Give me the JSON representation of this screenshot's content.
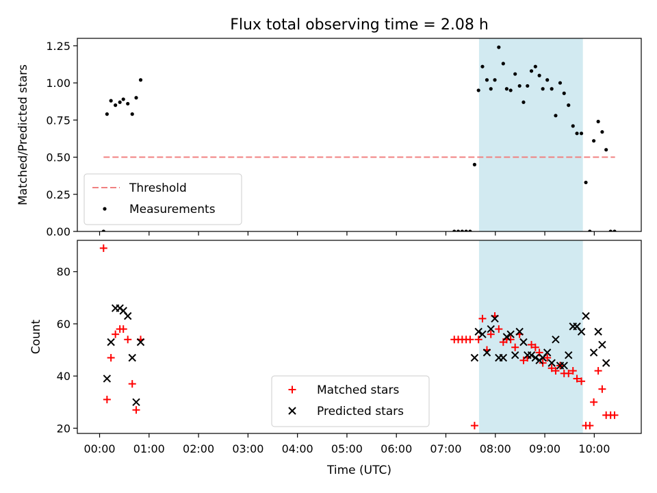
{
  "chart_data": {
    "title": "Flux total observing time = 2.08 h",
    "xlabel": "Time (UTC)",
    "x_unit": "hours",
    "xlim": [
      -0.45,
      10.95
    ],
    "x_ticks": [
      {
        "value": 0,
        "label": "00:00"
      },
      {
        "value": 1,
        "label": "01:00"
      },
      {
        "value": 2,
        "label": "02:00"
      },
      {
        "value": 3,
        "label": "03:00"
      },
      {
        "value": 4,
        "label": "04:00"
      },
      {
        "value": 5,
        "label": "05:00"
      },
      {
        "value": 6,
        "label": "06:00"
      },
      {
        "value": 7,
        "label": "07:00"
      },
      {
        "value": 8,
        "label": "08:00"
      },
      {
        "value": 9,
        "label": "09:00"
      },
      {
        "value": 10,
        "label": "10:00"
      }
    ],
    "shaded_region": {
      "x": [
        7.67,
        9.77
      ],
      "color": "#add8e6"
    },
    "panels": [
      {
        "type": "scatter",
        "ylabel": "Matched/Predicted stars",
        "ylim": [
          0,
          1.3
        ],
        "y_ticks": [
          {
            "value": 0,
            "label": "0.00"
          },
          {
            "value": 0.25,
            "label": "0.25"
          },
          {
            "value": 0.5,
            "label": "0.50"
          },
          {
            "value": 0.75,
            "label": "0.75"
          },
          {
            "value": 1.0,
            "label": "1.00"
          },
          {
            "value": 1.25,
            "label": "1.25"
          }
        ],
        "legend_position": "lower-left",
        "lines": [
          {
            "name": "Threshold",
            "color": "#f08080",
            "dash": true,
            "x": [
              0.08,
              10.42
            ],
            "y": [
              0.5,
              0.5
            ]
          }
        ],
        "series": [
          {
            "name": "Measurements",
            "marker": "dot",
            "color": "#000000",
            "points": [
              [
                0.08,
                0.0
              ],
              [
                0.15,
                0.79
              ],
              [
                0.23,
                0.88
              ],
              [
                0.32,
                0.85
              ],
              [
                0.41,
                0.87
              ],
              [
                0.48,
                0.89
              ],
              [
                0.57,
                0.86
              ],
              [
                0.66,
                0.79
              ],
              [
                0.74,
                0.9
              ],
              [
                0.83,
                1.02
              ],
              [
                7.17,
                0.0
              ],
              [
                7.25,
                0.0
              ],
              [
                7.33,
                0.0
              ],
              [
                7.41,
                0.0
              ],
              [
                7.49,
                0.0
              ],
              [
                7.58,
                0.45
              ],
              [
                7.66,
                0.95
              ],
              [
                7.74,
                1.11
              ],
              [
                7.83,
                1.02
              ],
              [
                7.91,
                0.96
              ],
              [
                7.99,
                1.02
              ],
              [
                8.07,
                1.24
              ],
              [
                8.16,
                1.13
              ],
              [
                8.23,
                0.96
              ],
              [
                8.31,
                0.95
              ],
              [
                8.4,
                1.06
              ],
              [
                8.49,
                0.98
              ],
              [
                8.57,
                0.87
              ],
              [
                8.65,
                0.98
              ],
              [
                8.73,
                1.08
              ],
              [
                8.81,
                1.11
              ],
              [
                8.89,
                1.05
              ],
              [
                8.96,
                0.96
              ],
              [
                9.05,
                1.02
              ],
              [
                9.14,
                0.96
              ],
              [
                9.22,
                0.78
              ],
              [
                9.31,
                1.0
              ],
              [
                9.39,
                0.93
              ],
              [
                9.48,
                0.85
              ],
              [
                9.57,
                0.71
              ],
              [
                9.65,
                0.66
              ],
              [
                9.74,
                0.66
              ],
              [
                9.83,
                0.33
              ],
              [
                9.91,
                0.0
              ],
              [
                9.99,
                0.61
              ],
              [
                10.08,
                0.74
              ],
              [
                10.16,
                0.67
              ],
              [
                10.24,
                0.55
              ],
              [
                10.33,
                0.0
              ],
              [
                10.41,
                0.0
              ]
            ]
          }
        ]
      },
      {
        "type": "scatter",
        "ylabel": "Count",
        "ylim": [
          18,
          92
        ],
        "y_ticks": [
          {
            "value": 20,
            "label": "20"
          },
          {
            "value": 40,
            "label": "40"
          },
          {
            "value": 60,
            "label": "60"
          },
          {
            "value": 80,
            "label": "80"
          }
        ],
        "legend_position": "lower-center",
        "lines": [],
        "series": [
          {
            "name": "Matched stars",
            "marker": "plus",
            "color": "#ff0000",
            "points": [
              [
                0.08,
                89
              ],
              [
                0.15,
                31
              ],
              [
                0.23,
                47
              ],
              [
                0.32,
                56
              ],
              [
                0.41,
                58
              ],
              [
                0.48,
                58
              ],
              [
                0.57,
                54
              ],
              [
                0.66,
                37
              ],
              [
                0.74,
                27
              ],
              [
                0.83,
                54
              ],
              [
                7.17,
                54
              ],
              [
                7.25,
                54
              ],
              [
                7.33,
                54
              ],
              [
                7.41,
                54
              ],
              [
                7.49,
                54
              ],
              [
                7.58,
                21
              ],
              [
                7.66,
                54
              ],
              [
                7.74,
                62
              ],
              [
                7.83,
                50
              ],
              [
                7.91,
                56
              ],
              [
                7.99,
                63
              ],
              [
                8.07,
                58
              ],
              [
                8.16,
                53
              ],
              [
                8.23,
                54
              ],
              [
                8.31,
                54
              ],
              [
                8.4,
                51
              ],
              [
                8.49,
                56
              ],
              [
                8.57,
                46
              ],
              [
                8.65,
                47
              ],
              [
                8.73,
                52
              ],
              [
                8.81,
                51
              ],
              [
                8.89,
                49
              ],
              [
                8.96,
                45
              ],
              [
                9.05,
                47
              ],
              [
                9.14,
                43
              ],
              [
                9.22,
                42
              ],
              [
                9.31,
                44
              ],
              [
                9.39,
                41
              ],
              [
                9.48,
                41
              ],
              [
                9.57,
                42
              ],
              [
                9.65,
                39
              ],
              [
                9.74,
                38
              ],
              [
                9.83,
                21
              ],
              [
                9.91,
                21
              ],
              [
                9.99,
                30
              ],
              [
                10.08,
                42
              ],
              [
                10.16,
                35
              ],
              [
                10.24,
                25
              ],
              [
                10.33,
                25
              ],
              [
                10.41,
                25
              ]
            ]
          },
          {
            "name": "Predicted stars",
            "marker": "x",
            "color": "#000000",
            "points": [
              [
                0.15,
                39
              ],
              [
                0.23,
                53
              ],
              [
                0.32,
                66
              ],
              [
                0.41,
                66
              ],
              [
                0.48,
                65
              ],
              [
                0.57,
                63
              ],
              [
                0.66,
                47
              ],
              [
                0.74,
                30
              ],
              [
                0.83,
                53
              ],
              [
                7.58,
                47
              ],
              [
                7.66,
                57
              ],
              [
                7.74,
                56
              ],
              [
                7.83,
                49
              ],
              [
                7.91,
                58
              ],
              [
                7.99,
                62
              ],
              [
                8.07,
                47
              ],
              [
                8.16,
                47
              ],
              [
                8.23,
                55
              ],
              [
                8.31,
                56
              ],
              [
                8.4,
                48
              ],
              [
                8.49,
                57
              ],
              [
                8.57,
                53
              ],
              [
                8.65,
                48
              ],
              [
                8.73,
                48
              ],
              [
                8.81,
                47
              ],
              [
                8.89,
                46
              ],
              [
                8.96,
                47
              ],
              [
                9.05,
                49
              ],
              [
                9.14,
                45
              ],
              [
                9.22,
                54
              ],
              [
                9.31,
                44
              ],
              [
                9.39,
                44
              ],
              [
                9.48,
                48
              ],
              [
                9.57,
                59
              ],
              [
                9.65,
                59
              ],
              [
                9.74,
                57
              ],
              [
                9.83,
                63
              ],
              [
                9.99,
                49
              ],
              [
                10.08,
                57
              ],
              [
                10.16,
                52
              ],
              [
                10.24,
                45
              ]
            ]
          }
        ]
      }
    ]
  }
}
